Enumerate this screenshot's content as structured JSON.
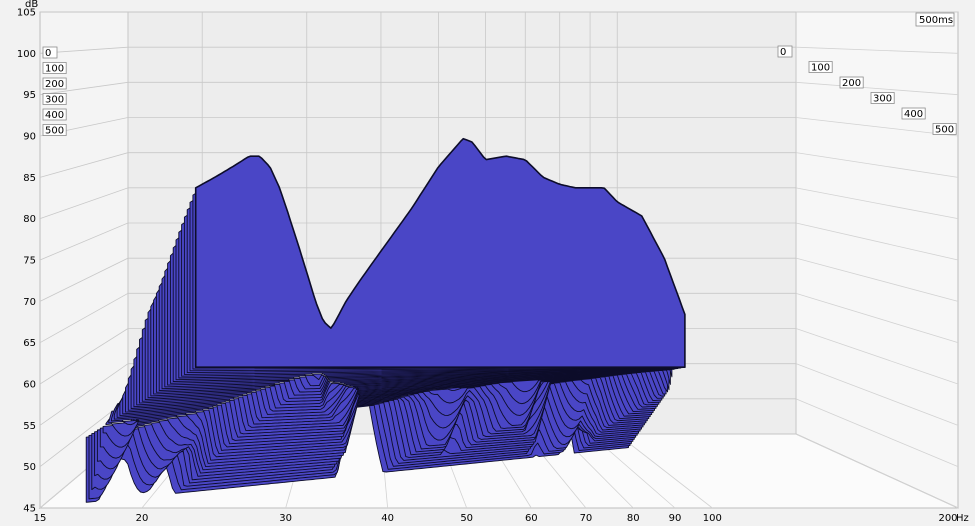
{
  "chart_data": {
    "type": "waterfall",
    "title": "",
    "y_unit": "dB",
    "x_unit": "Hz",
    "ylim": [
      45,
      105
    ],
    "xlim": [
      15,
      200
    ],
    "x_scale": "log",
    "y_ticks": [
      45,
      50,
      55,
      60,
      65,
      70,
      75,
      80,
      85,
      90,
      95,
      100,
      105
    ],
    "x_ticks": [
      15,
      20,
      30,
      40,
      50,
      60,
      70,
      80,
      90,
      100,
      200
    ],
    "time_labels": [
      "0",
      "100",
      "200",
      "300",
      "400",
      "500"
    ],
    "time_corner_label": "500ms",
    "time_unit": "ms",
    "time_range": [
      0,
      500
    ],
    "slice_count": 40,
    "fill_color": "#4a46c6",
    "line_color": "#0d0d2a",
    "initial_response": {
      "x": [
        19.5,
        20,
        21,
        22,
        23,
        24,
        25,
        26,
        27,
        28,
        29,
        30,
        31,
        32,
        33,
        34,
        35,
        37,
        40,
        45,
        50,
        55,
        57,
        60,
        65,
        70,
        75,
        80,
        85,
        90,
        95,
        100,
        110,
        120,
        130
      ],
      "y": [
        80.0,
        80.5,
        81.5,
        82.5,
        83.5,
        84.5,
        84.5,
        83.0,
        80.0,
        76.0,
        72.0,
        68.0,
        64.0,
        61.0,
        60.0,
        62.0,
        64.0,
        67.0,
        71.0,
        77.0,
        83.0,
        87.0,
        86.5,
        84.0,
        84.5,
        84.0,
        81.5,
        80.5,
        80.0,
        80.0,
        80.0,
        78.0,
        76.0,
        70.0,
        62.0
      ]
    }
  }
}
